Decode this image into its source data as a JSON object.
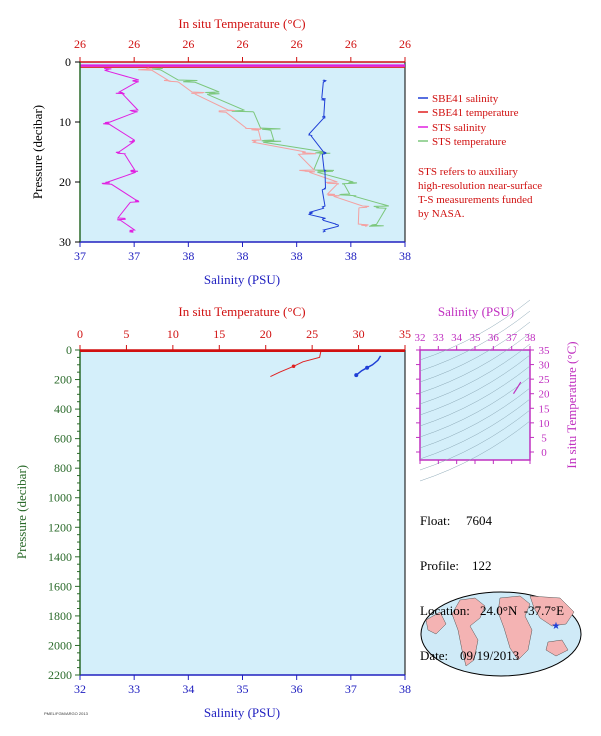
{
  "top_chart": {
    "top_axis_label": "In situ Temperature (°C)",
    "top_ticks": [
      "26",
      "26",
      "26",
      "26",
      "26",
      "26",
      "26"
    ],
    "bottom_axis_label": "Salinity (PSU)",
    "bottom_ticks": [
      "37",
      "37",
      "38",
      "38",
      "38",
      "38",
      "38"
    ],
    "left_axis_label": "Pressure (decibar)",
    "left_ticks": [
      "0",
      "10",
      "20",
      "30"
    ],
    "legend": [
      "SBE41 salinity",
      "SBE41 temperature",
      "STS salinity",
      "STS temperature"
    ],
    "note": [
      "STS refers to auxiliary",
      "high-resolution near-surface",
      "T-S measurements funded",
      "by NASA."
    ]
  },
  "bottom_chart": {
    "top_axis_label": "In situ Temperature (°C)",
    "top_ticks": [
      "0",
      "5",
      "10",
      "15",
      "20",
      "25",
      "30",
      "35"
    ],
    "bottom_axis_label": "Salinity (PSU)",
    "bottom_ticks": [
      "32",
      "33",
      "34",
      "35",
      "36",
      "37",
      "38"
    ],
    "left_axis_label": "Pressure (decibar)",
    "left_ticks": [
      "0",
      "200",
      "400",
      "600",
      "800",
      "1000",
      "1200",
      "1400",
      "1600",
      "1800",
      "2000",
      "2200"
    ]
  },
  "ts_chart": {
    "top_axis_label": "Salinity (PSU)",
    "top_ticks": [
      "32",
      "33",
      "34",
      "35",
      "36",
      "37",
      "38"
    ],
    "right_axis_label": "In situ Temperature (°C)",
    "right_ticks": [
      "0",
      "5",
      "10",
      "15",
      "20",
      "25",
      "30",
      "35"
    ]
  },
  "info": {
    "float_label": "Float:",
    "float_value": "7604",
    "profile_label": "Profile:",
    "profile_value": "122",
    "location_label": "Location:",
    "location_value": "24.0°N  -37.7°E",
    "date_label": "Date:",
    "date_value": "09/19/2013"
  },
  "footer": "PMEL/FGM/ARGO 2013",
  "colors": {
    "plot_bg": "#d4effa",
    "sbe41_salinity": "#1f3fd6",
    "sbe41_temperature": "#e02020",
    "sts_salinity": "#e020e0",
    "sts_temperature": "#7cc77c",
    "sts_temperature_alt": "#f4a0a0",
    "temperature_axis": "#d01010",
    "salinity_axis": "#2020c0",
    "pressure_axis": "#2a6a2a",
    "ts_axis": "#c030c0"
  },
  "chart_data": [
    {
      "type": "line",
      "title": "",
      "xlabel": "Salinity (PSU)",
      "x2label": "In situ Temperature (°C)",
      "ylabel": "Pressure (decibar)",
      "ylim": [
        30,
        0
      ],
      "series": [
        {
          "name": "SBE41 salinity",
          "x": [
            37.9,
            37.9,
            37.9,
            37.85,
            37.9,
            37.9,
            37.9,
            37.9,
            37.85,
            37.9,
            37.95,
            37.9
          ],
          "y": [
            3,
            6,
            9,
            12,
            15,
            18,
            21,
            24,
            25,
            26,
            27,
            28
          ]
        },
        {
          "name": "SBE41 temperature",
          "x": [
            26.0
          ],
          "y": [
            0.5
          ]
        },
        {
          "name": "STS salinity",
          "x": [
            37.1,
            37.2,
            37.15,
            37.2,
            37.1,
            37.2,
            37.15,
            37.2,
            37.1,
            37.2,
            37.15,
            37.2
          ],
          "y": [
            1,
            3,
            5,
            8,
            10,
            13,
            15,
            18,
            20,
            23,
            26,
            28
          ]
        },
        {
          "name": "STS temperature",
          "x": [
            37.3,
            37.4,
            37.5,
            37.6,
            37.7,
            37.7,
            37.9,
            37.9,
            38.0,
            38.0,
            38.1,
            38.1
          ],
          "y": [
            1,
            3,
            5,
            8,
            11,
            13,
            15,
            18,
            20,
            22,
            24,
            27
          ]
        }
      ]
    },
    {
      "type": "line",
      "title": "",
      "xlabel": "Salinity (PSU)",
      "x2label": "In situ Temperature (°C)",
      "ylabel": "Pressure (decibar)",
      "xlim": [
        32,
        38
      ],
      "x2lim": [
        0,
        35
      ],
      "ylim": [
        2200,
        0
      ],
      "series": [
        {
          "name": "SBE41 temperature",
          "x": [
            26.0,
            25.9,
            25.8,
            24.0,
            23.0,
            21.5,
            20.5
          ],
          "y": [
            0,
            20,
            50,
            80,
            110,
            150,
            180
          ]
        },
        {
          "name": "SBE41 salinity",
          "x": [
            37.55,
            37.5,
            37.4,
            37.3,
            37.2,
            37.1
          ],
          "y": [
            40,
            70,
            100,
            120,
            140,
            170
          ]
        }
      ]
    },
    {
      "type": "line",
      "title": "",
      "xlabel": "Salinity (PSU)",
      "ylabel": "In situ Temperature (°C)",
      "xlim": [
        32,
        38
      ],
      "ylim": [
        -2,
        35
      ],
      "series": [
        {
          "name": "T-S profile",
          "x": [
            37.1,
            37.3,
            37.5
          ],
          "y": [
            20,
            22,
            24
          ]
        }
      ]
    }
  ]
}
